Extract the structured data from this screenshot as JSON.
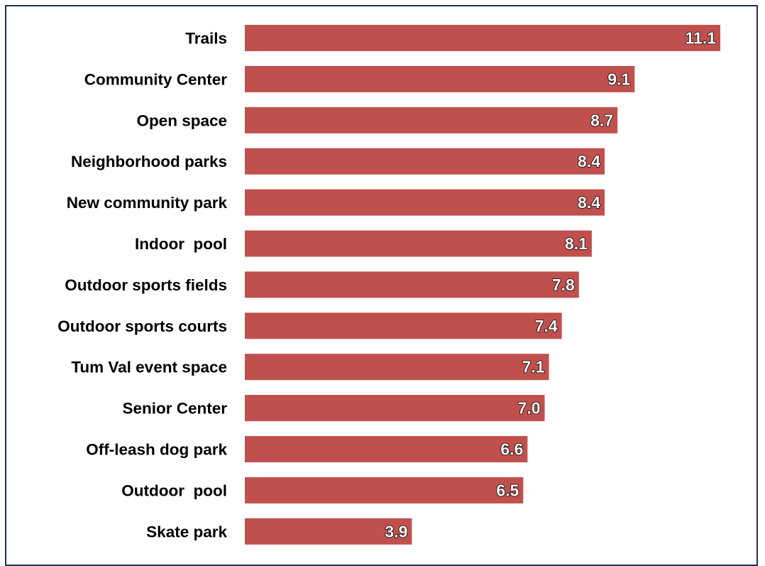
{
  "chart_data": {
    "type": "bar",
    "orientation": "horizontal",
    "categories": [
      "Trails",
      "Community Center",
      "Open space",
      "Neighborhood parks",
      "New community park",
      "Indoor  pool",
      "Outdoor sports fields",
      "Outdoor sports courts",
      "Tum Val event space",
      "Senior Center",
      "Off-leash dog park",
      "Outdoor  pool",
      "Skate park"
    ],
    "values": [
      11.1,
      9.1,
      8.7,
      8.4,
      8.4,
      8.1,
      7.8,
      7.4,
      7.1,
      7.0,
      6.6,
      6.5,
      3.9
    ],
    "value_labels": [
      "11.1",
      "9.1",
      "8.7",
      "8.4",
      "8.4",
      "8.1",
      "7.8",
      "7.4",
      "7.1",
      "7.0",
      "6.6",
      "6.5",
      "3.9"
    ],
    "title": "",
    "xlabel": "",
    "ylabel": "",
    "xlim": [
      0,
      11.1
    ],
    "grid": false,
    "legend": "none",
    "bar_color": "#c0504d",
    "frame_color": "#1f2f4f"
  }
}
